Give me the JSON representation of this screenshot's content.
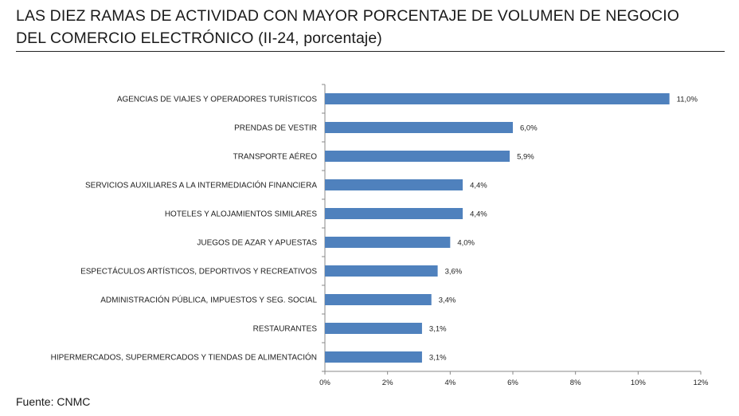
{
  "title_lines": [
    "LAS DIEZ RAMAS DE ACTIVIDAD CON MAYOR PORCENTAJE DE VOLUMEN DE NEGOCIO",
    "DEL COMERCIO ELECTRÓNICO (II-24, porcentaje)"
  ],
  "source": "Fuente: CNMC",
  "chart_data": {
    "type": "bar",
    "orientation": "horizontal",
    "title": "LAS DIEZ RAMAS DE ACTIVIDAD CON MAYOR PORCENTAJE DE VOLUMEN DE NEGOCIO DEL COMERCIO ELECTRÓNICO (II-24, porcentaje)",
    "categories": [
      "AGENCIAS DE VIAJES Y OPERADORES TURÍSTICOS",
      "PRENDAS DE VESTIR",
      "TRANSPORTE AÉREO",
      "SERVICIOS AUXILIARES A LA INTERMEDIACIÓN FINANCIERA",
      "HOTELES  Y ALOJAMIENTOS SIMILARES",
      "JUEGOS DE AZAR Y APUESTAS",
      "ESPECTÁCULOS ARTÍSTICOS, DEPORTIVOS Y RECREATIVOS",
      "ADMINISTRACIÓN PÚBLICA, IMPUESTOS Y SEG. SOCIAL",
      "RESTAURANTES",
      "HIPERMERCADOS, SUPERMERCADOS Y TIENDAS DE ALIMENTACIÓN"
    ],
    "values": [
      11.0,
      6.0,
      5.9,
      4.4,
      4.4,
      4.0,
      3.6,
      3.4,
      3.1,
      3.1
    ],
    "value_labels": [
      "11,0%",
      "6,0%",
      "5,9%",
      "4,4%",
      "4,4%",
      "4,0%",
      "3,6%",
      "3,4%",
      "3,1%",
      "3,1%"
    ],
    "xlim": [
      0,
      12
    ],
    "x_ticks": [
      0,
      2,
      4,
      6,
      8,
      10,
      12
    ],
    "x_tick_labels": [
      "0%",
      "2%",
      "4%",
      "6%",
      "8%",
      "10%",
      "12%"
    ],
    "bar_color": "#4f81bd",
    "grid": false,
    "legend": false
  }
}
